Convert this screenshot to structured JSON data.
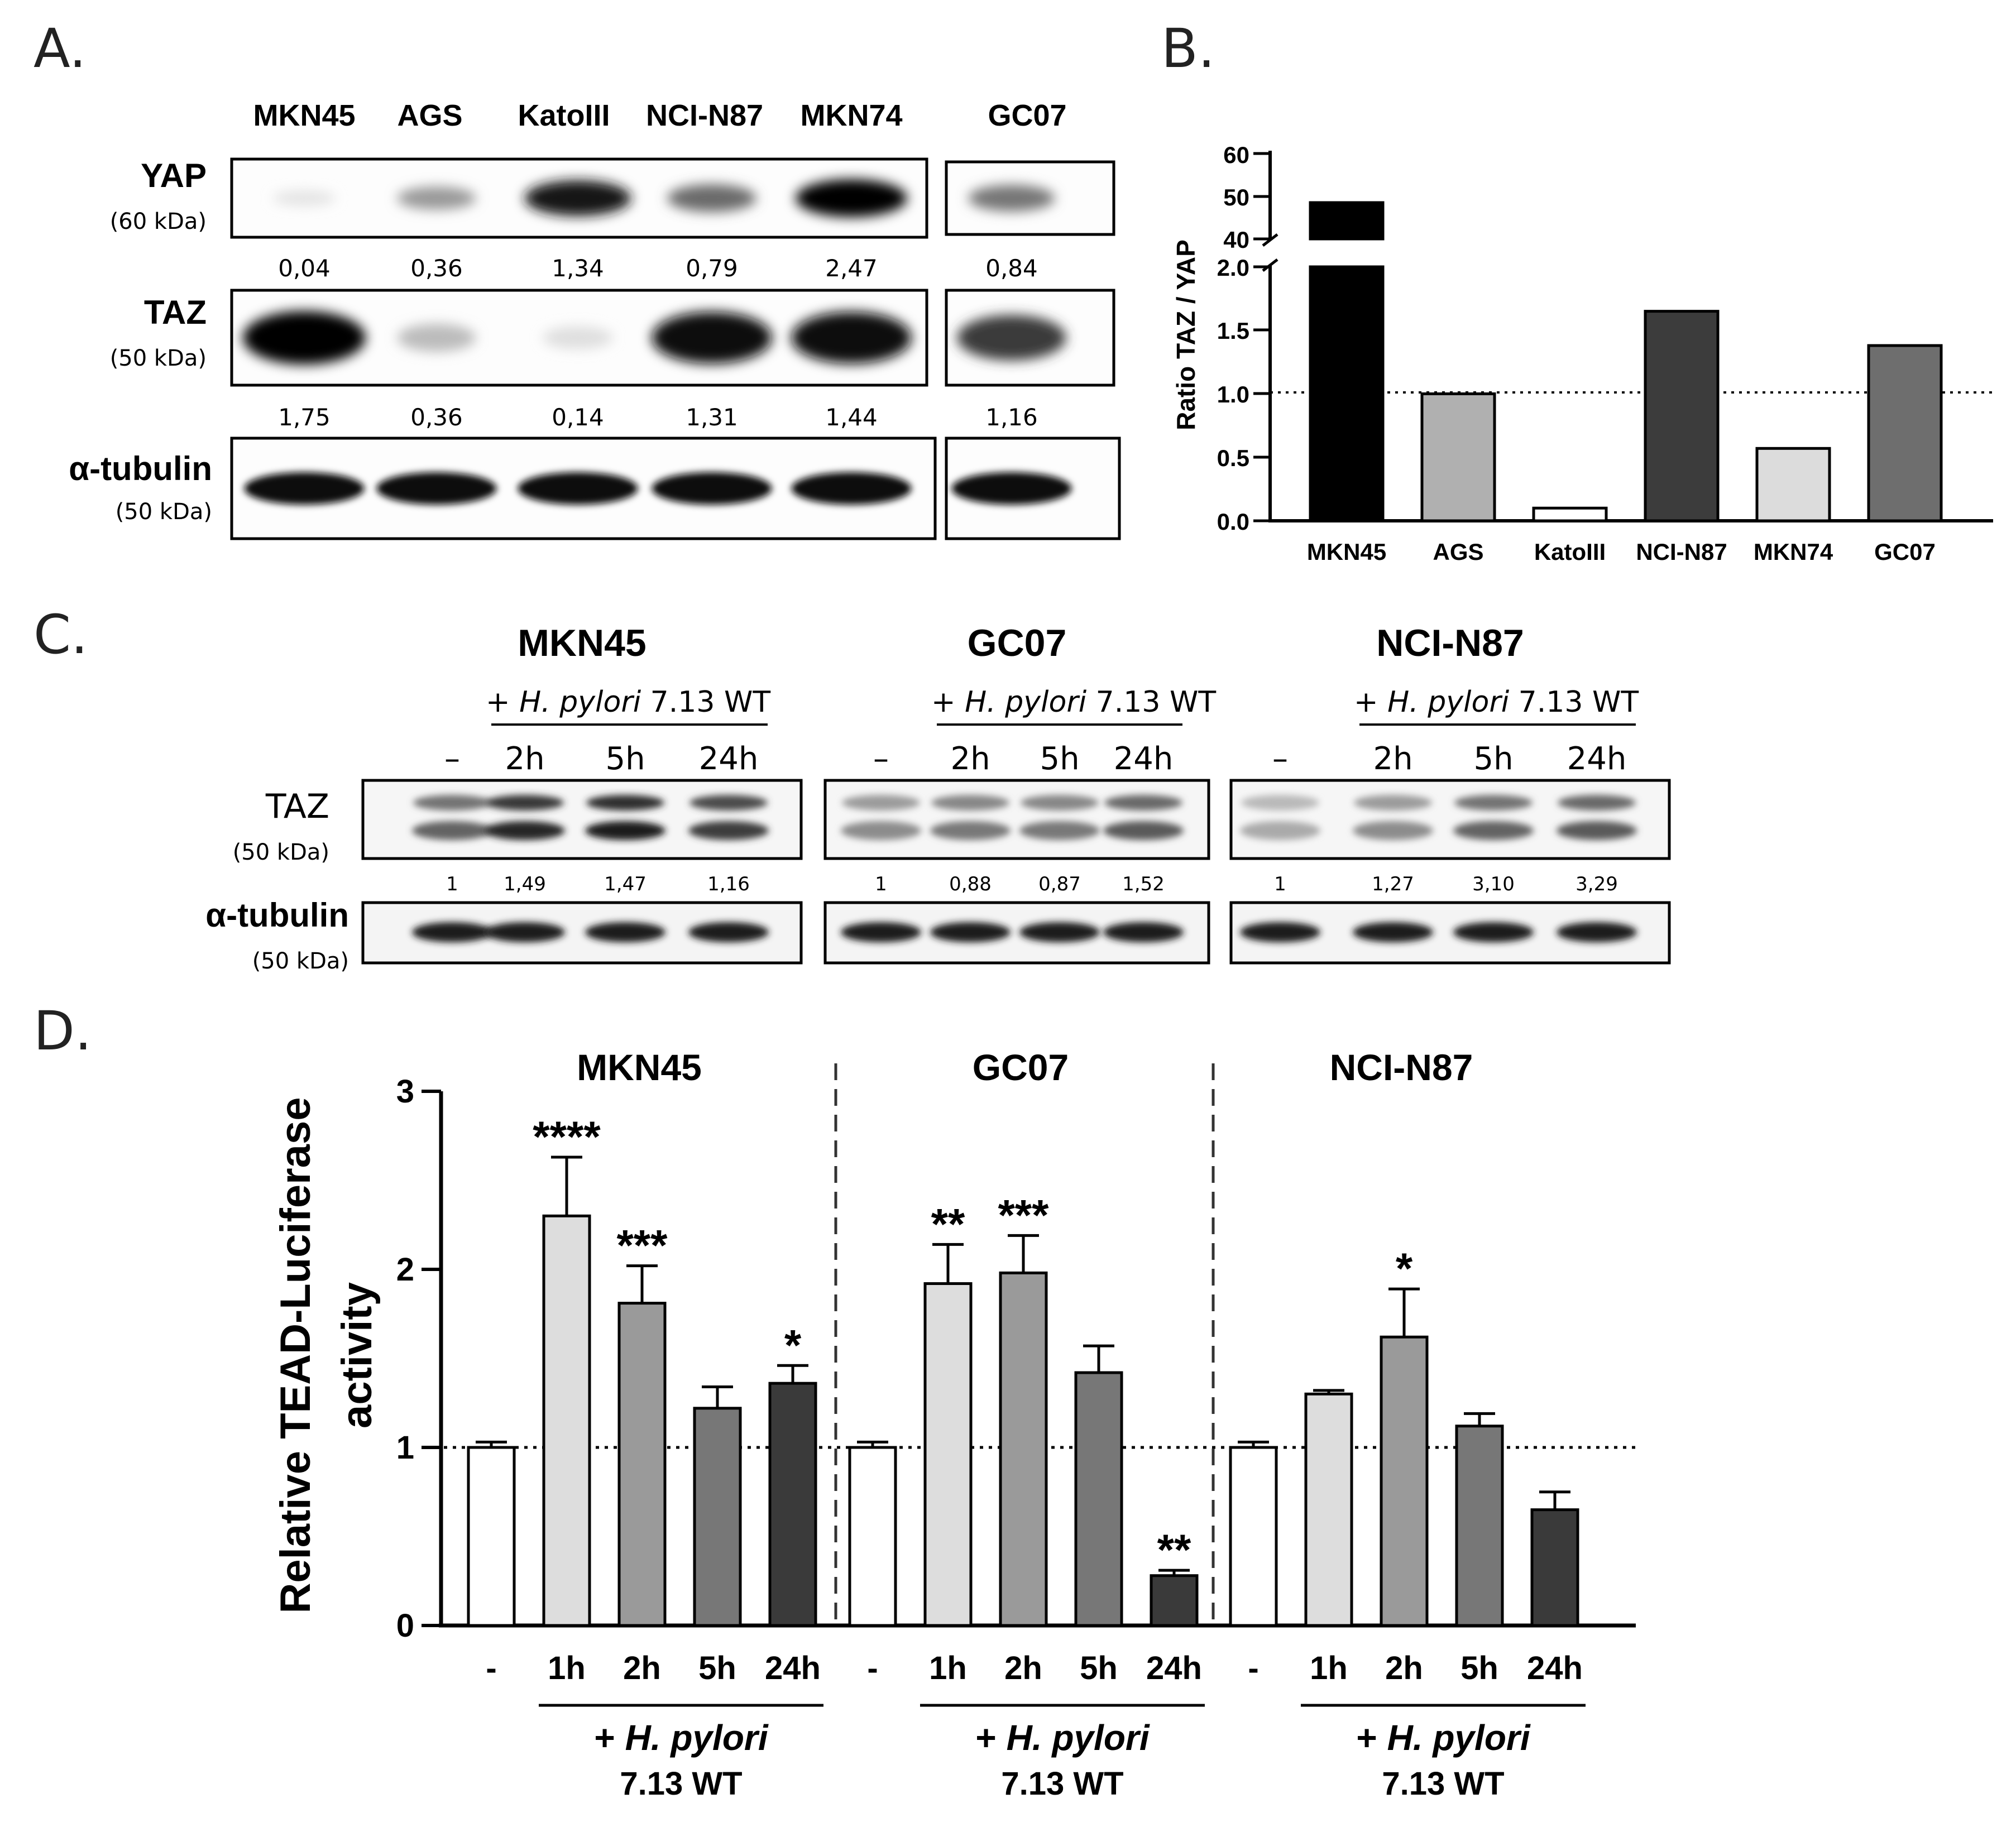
{
  "panel_letters": {
    "a": "A.",
    "b": "B.",
    "c": "C.",
    "d": "D."
  },
  "panelA": {
    "lane_labels": [
      "MKN45",
      "AGS",
      "KatoIII",
      "NCI-N87",
      "MKN74",
      "GC07"
    ],
    "rows": [
      {
        "name": "YAP",
        "kda": "(60 kDa)"
      },
      {
        "name": "TAZ",
        "kda": "(50 kDa)"
      },
      {
        "name": "α-tubulin",
        "kda": "(50 kDa)"
      }
    ],
    "yap_quant": [
      "0,04",
      "0,36",
      "1,34",
      "0,79",
      "2,47",
      "0,84"
    ],
    "taz_quant": [
      "1,75",
      "0,36",
      "0,14",
      "1,31",
      "1,44",
      "1,16"
    ],
    "yap_intensity": [
      0.03,
      0.35,
      0.9,
      0.55,
      1.0,
      0.5
    ],
    "taz_intensity": [
      1.0,
      0.2,
      0.05,
      0.95,
      0.95,
      0.75
    ]
  },
  "panelB": {
    "ylabel": "Ratio TAZ  / YAP",
    "upper_ticks": [
      "60",
      "50",
      "40"
    ],
    "lower_ticks": [
      "2.0",
      "1.5",
      "1.0",
      "0.5",
      "0.0"
    ],
    "categories": [
      "MKN45",
      "AGS",
      "KatoIII",
      "NCI-N87",
      "MKN74",
      "GC07"
    ],
    "colors": [
      "#000000",
      "#b0b0b0",
      "#ffffff",
      "#3c3c3c",
      "#dcdcdc",
      "#6e6e6e"
    ]
  },
  "panelC": {
    "groups": [
      {
        "title": "MKN45",
        "lanes": [
          "–",
          "2h",
          "5h",
          "24h"
        ],
        "quant": [
          "1",
          "1,49",
          "1,47",
          "1,16"
        ]
      },
      {
        "title": "GC07",
        "lanes": [
          "–",
          "2h",
          "5h",
          "24h"
        ],
        "quant": [
          "1",
          "0,88",
          "0,87",
          "1,52"
        ]
      },
      {
        "title": "NCI-N87",
        "lanes": [
          "–",
          "2h",
          "5h",
          "24h"
        ],
        "quant": [
          "1",
          "1,27",
          "3,10",
          "3,29"
        ]
      }
    ],
    "treat_prefix": "+ ",
    "treat_species": "H. pylori",
    "treat_strain": " 7.13 WT",
    "rows": [
      {
        "name": "TAZ",
        "kda": "(50 kDa)"
      },
      {
        "name": "α-tubulin",
        "kda": "(50 kDa)"
      }
    ]
  },
  "panelD": {
    "ylabel_line1": "Relative TEAD-Luciferase",
    "ylabel_line2": "activity",
    "yticks": [
      "0",
      "1",
      "2",
      "3"
    ],
    "treat_plus": "+ ",
    "treat_species": "H. pylori",
    "treat_strain": "7.13 WT",
    "groups": [
      {
        "title": "MKN45",
        "labels": [
          "-",
          "1h",
          "2h",
          "5h",
          "24h"
        ]
      },
      {
        "title": "GC07",
        "labels": [
          "-",
          "1h",
          "2h",
          "5h",
          "24h"
        ]
      },
      {
        "title": "NCI-N87",
        "labels": [
          "-",
          "1h",
          "2h",
          "5h",
          "24h"
        ]
      }
    ]
  },
  "chart_data": [
    {
      "type": "bar",
      "categories": [
        "MKN45",
        "AGS",
        "KatoIII",
        "NCI-N87",
        "MKN74",
        "GC07"
      ],
      "values": [
        48.5,
        1.0,
        0.1,
        1.65,
        0.57,
        1.38
      ],
      "ylabel": "Ratio TAZ  / YAP",
      "y_axis_break": [
        2.0,
        40
      ],
      "ylim_lower": [
        0,
        2.0
      ],
      "ylim_upper": [
        40,
        60
      ],
      "reference_line": 1.0
    },
    {
      "type": "bar",
      "ylabel": "Relative TEAD-Luciferase activity",
      "ylim": [
        0,
        3
      ],
      "reference_line": 1.0,
      "groups": [
        {
          "name": "MKN45",
          "categories": [
            "-",
            "1h",
            "2h",
            "5h",
            "24h"
          ],
          "values": [
            1.0,
            2.3,
            1.81,
            1.22,
            1.36
          ],
          "errors": [
            0.03,
            0.33,
            0.21,
            0.12,
            0.1
          ],
          "significance": [
            "",
            "****",
            "***",
            "",
            "*"
          ]
        },
        {
          "name": "GC07",
          "categories": [
            "-",
            "1h",
            "2h",
            "5h",
            "24h"
          ],
          "values": [
            1.0,
            1.92,
            1.98,
            1.42,
            0.28
          ],
          "errors": [
            0.03,
            0.22,
            0.21,
            0.15,
            0.03
          ],
          "significance": [
            "",
            "**",
            "***",
            "",
            "**"
          ]
        },
        {
          "name": "NCI-N87",
          "categories": [
            "-",
            "1h",
            "2h",
            "5h",
            "24h"
          ],
          "values": [
            1.0,
            1.3,
            1.62,
            1.12,
            0.65
          ],
          "errors": [
            0.03,
            0.02,
            0.27,
            0.07,
            0.1
          ],
          "significance": [
            "",
            "",
            "*",
            "",
            ""
          ]
        }
      ],
      "bar_colors": [
        "#ffffff",
        "#dddddd",
        "#9a9a9a",
        "#777777",
        "#3a3a3a"
      ]
    }
  ]
}
